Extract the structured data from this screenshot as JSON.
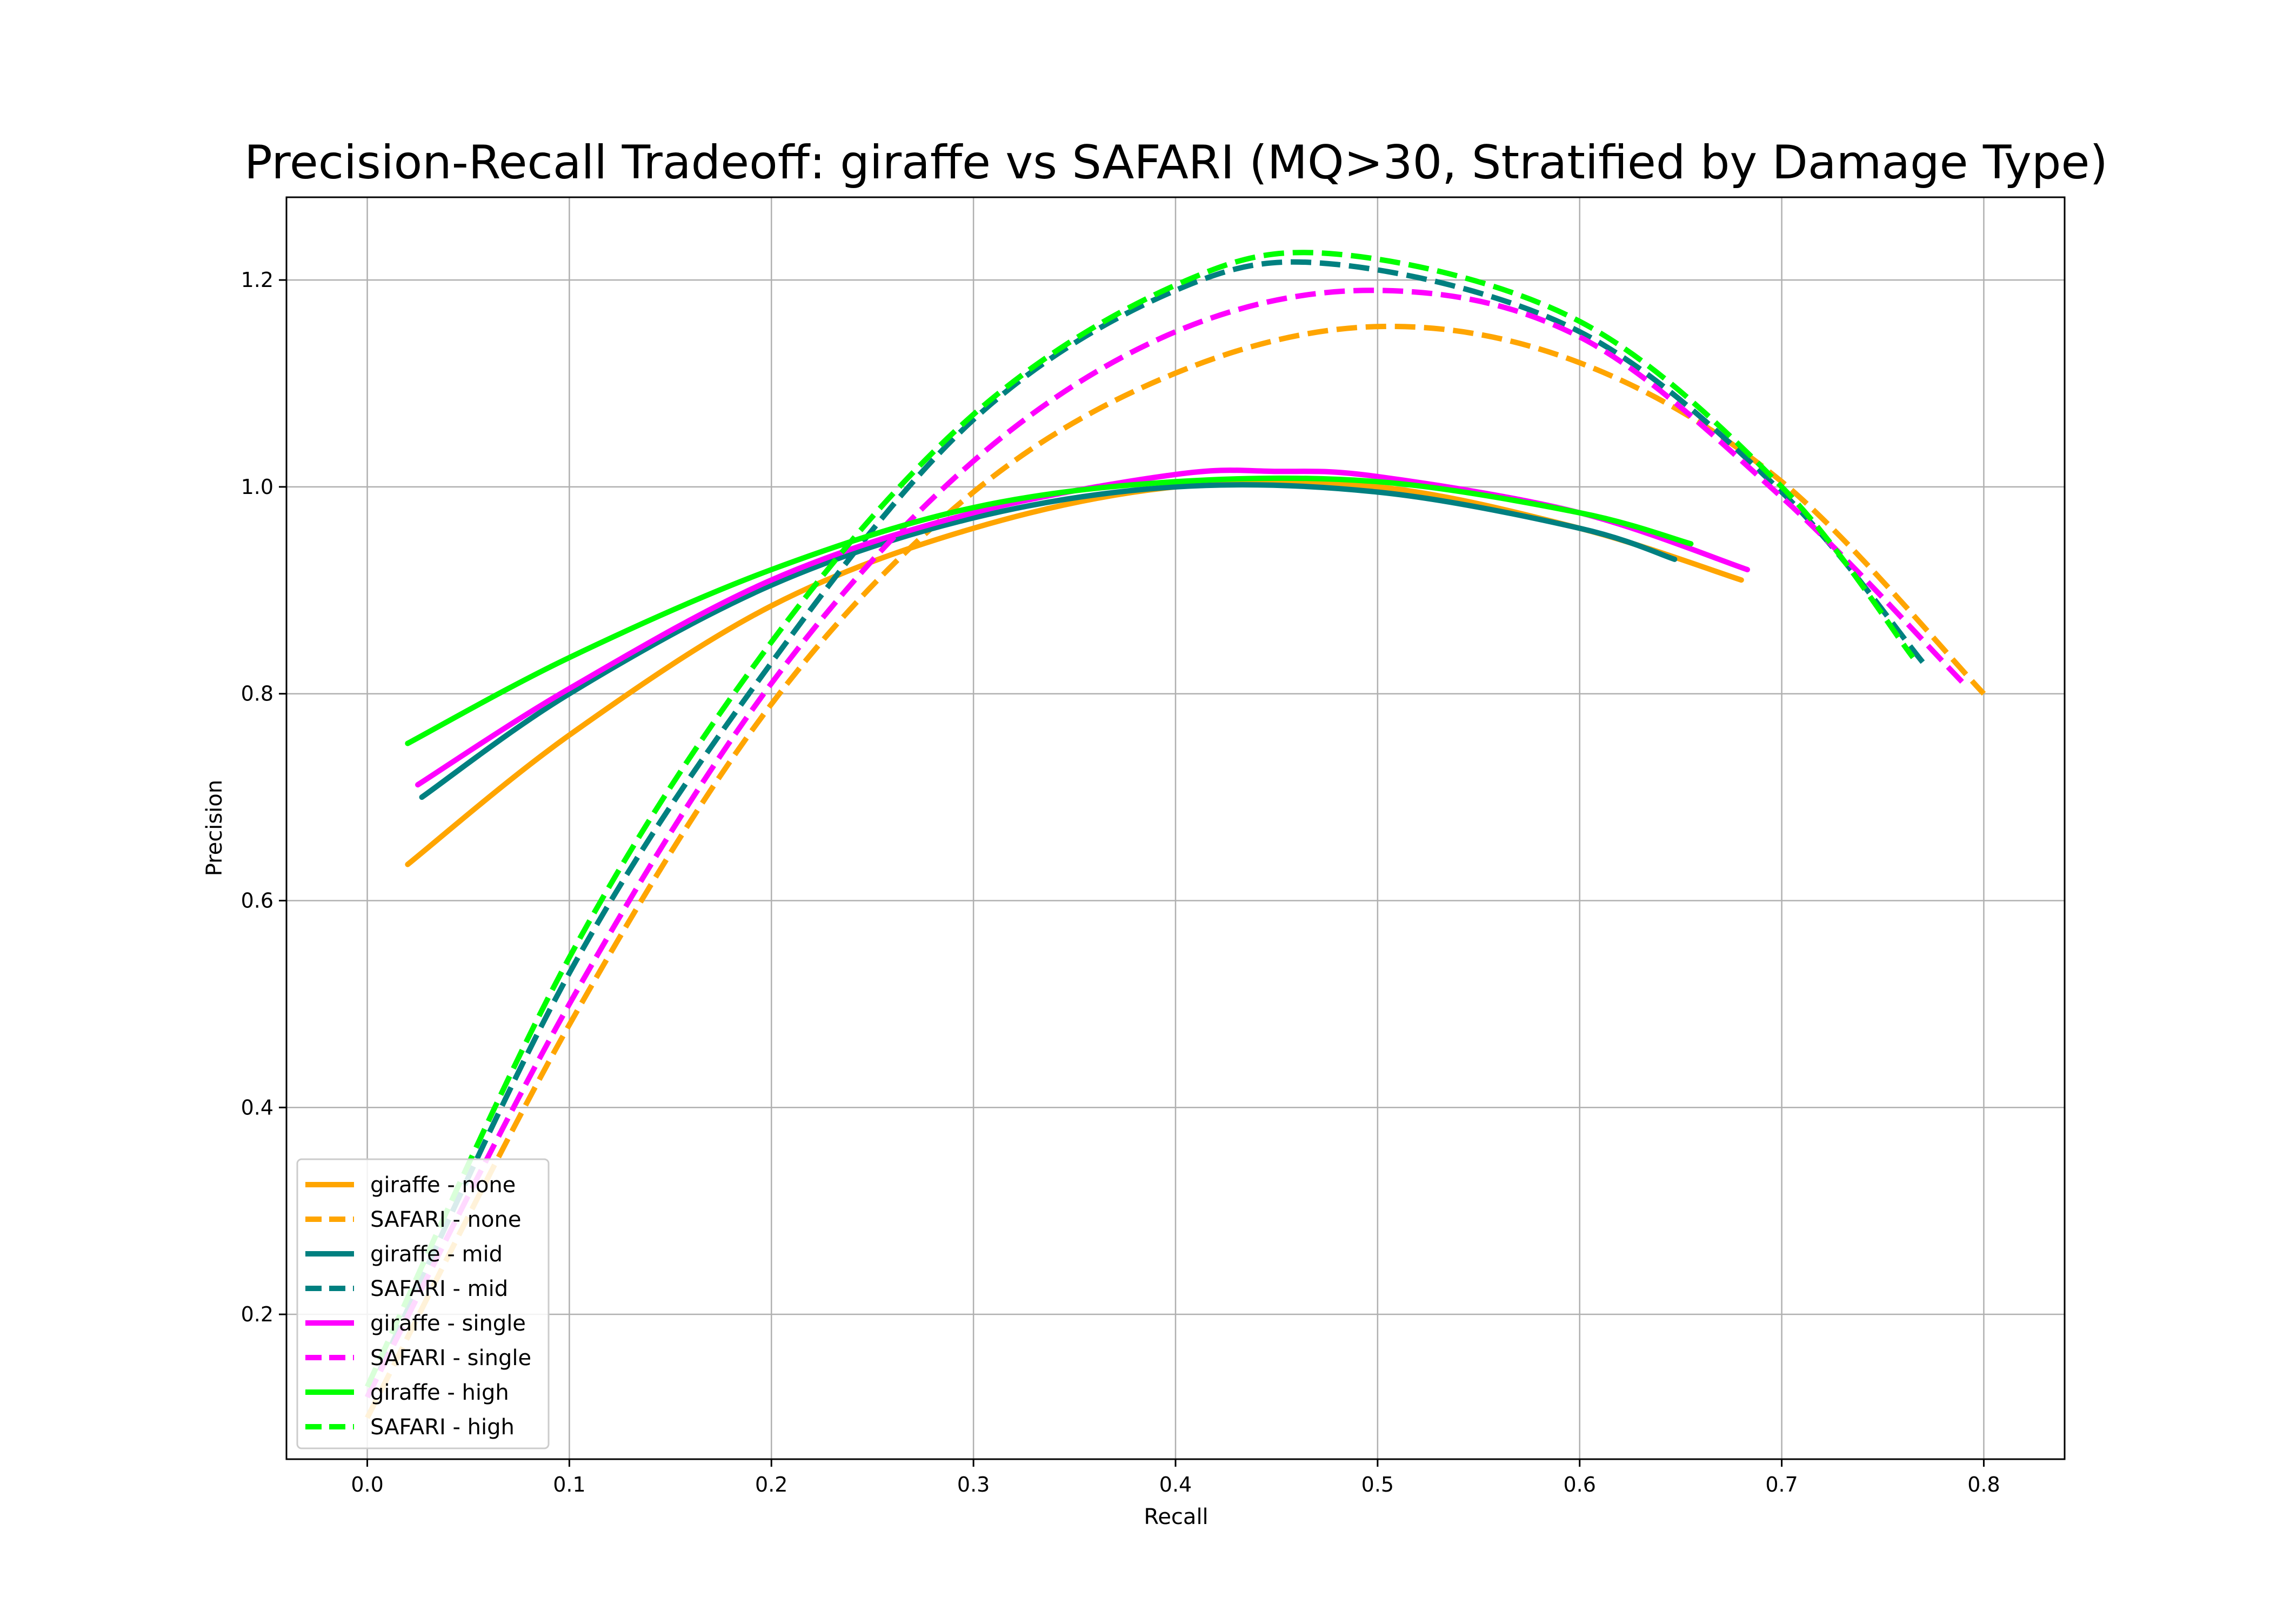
{
  "chart_data": {
    "type": "line",
    "title": "Precision-Recall Tradeoff: giraffe vs SAFARI (MQ>30, Stratified by Damage Type)",
    "xlabel": "Recall",
    "ylabel": "Precision",
    "xlim": [
      -0.04,
      0.84
    ],
    "ylim": [
      0.06,
      1.28
    ],
    "xticks": [
      0.0,
      0.1,
      0.2,
      0.3,
      0.4,
      0.5,
      0.6,
      0.7,
      0.8
    ],
    "xtick_labels": [
      "0.0",
      "0.1",
      "0.2",
      "0.3",
      "0.4",
      "0.5",
      "0.6",
      "0.7",
      "0.8"
    ],
    "yticks": [
      0.2,
      0.4,
      0.6,
      0.8,
      1.0,
      1.2
    ],
    "ytick_labels": [
      "0.2",
      "0.4",
      "0.6",
      "0.8",
      "1.0",
      "1.2"
    ],
    "grid": true,
    "legend_position": "lower-left",
    "series": [
      {
        "name": "giraffe - none",
        "color": "#FFA500",
        "dashed": false,
        "x": [
          0.02,
          0.1,
          0.2,
          0.3,
          0.4,
          0.5,
          0.6,
          0.68
        ],
        "y": [
          0.635,
          0.76,
          0.885,
          0.96,
          1.0,
          1.0,
          0.96,
          0.91
        ]
      },
      {
        "name": "SAFARI - none",
        "color": "#FFA500",
        "dashed": false,
        "x": [
          0.0,
          0.1,
          0.2,
          0.3,
          0.4,
          0.5,
          0.6,
          0.7,
          0.8
        ],
        "y": [
          0.1,
          0.48,
          0.79,
          0.995,
          1.11,
          1.155,
          1.12,
          1.005,
          0.8
        ]
      },
      {
        "name": "giraffe - mid",
        "color": "#008080",
        "dashed": false,
        "x": [
          0.027,
          0.1,
          0.2,
          0.3,
          0.4,
          0.5,
          0.6,
          0.647
        ],
        "y": [
          0.7,
          0.8,
          0.905,
          0.97,
          1.0,
          0.995,
          0.96,
          0.93
        ]
      },
      {
        "name": "SAFARI - mid",
        "color": "#008080",
        "dashed": false,
        "x": [
          0.0,
          0.1,
          0.2,
          0.3,
          0.4,
          0.48,
          0.6,
          0.7,
          0.77
        ],
        "y": [
          0.12,
          0.53,
          0.83,
          1.065,
          1.19,
          1.215,
          1.15,
          0.995,
          0.83
        ]
      },
      {
        "name": "giraffe - single",
        "color": "#FF00FF",
        "dashed": false,
        "x": [
          0.025,
          0.1,
          0.2,
          0.3,
          0.4,
          0.45,
          0.5,
          0.6,
          0.683
        ],
        "y": [
          0.712,
          0.805,
          0.91,
          0.975,
          1.012,
          1.015,
          1.01,
          0.975,
          0.92
        ]
      },
      {
        "name": "SAFARI - single",
        "color": "#FF00FF",
        "dashed": false,
        "x": [
          0.0,
          0.1,
          0.2,
          0.3,
          0.4,
          0.5,
          0.6,
          0.7,
          0.79
        ],
        "y": [
          0.12,
          0.5,
          0.81,
          1.025,
          1.15,
          1.19,
          1.145,
          0.99,
          0.81
        ]
      },
      {
        "name": "giraffe - high",
        "color": "#00FF00",
        "dashed": false,
        "x": [
          0.02,
          0.1,
          0.2,
          0.3,
          0.4,
          0.5,
          0.6,
          0.655
        ],
        "y": [
          0.752,
          0.835,
          0.92,
          0.98,
          1.005,
          1.005,
          0.975,
          0.945
        ]
      },
      {
        "name": "SAFARI - high",
        "color": "#00FF00",
        "dashed": false,
        "x": [
          0.0,
          0.1,
          0.2,
          0.3,
          0.4,
          0.48,
          0.6,
          0.7,
          0.765
        ],
        "y": [
          0.13,
          0.545,
          0.85,
          1.07,
          1.195,
          1.225,
          1.16,
          1.0,
          0.835
        ]
      }
    ]
  }
}
